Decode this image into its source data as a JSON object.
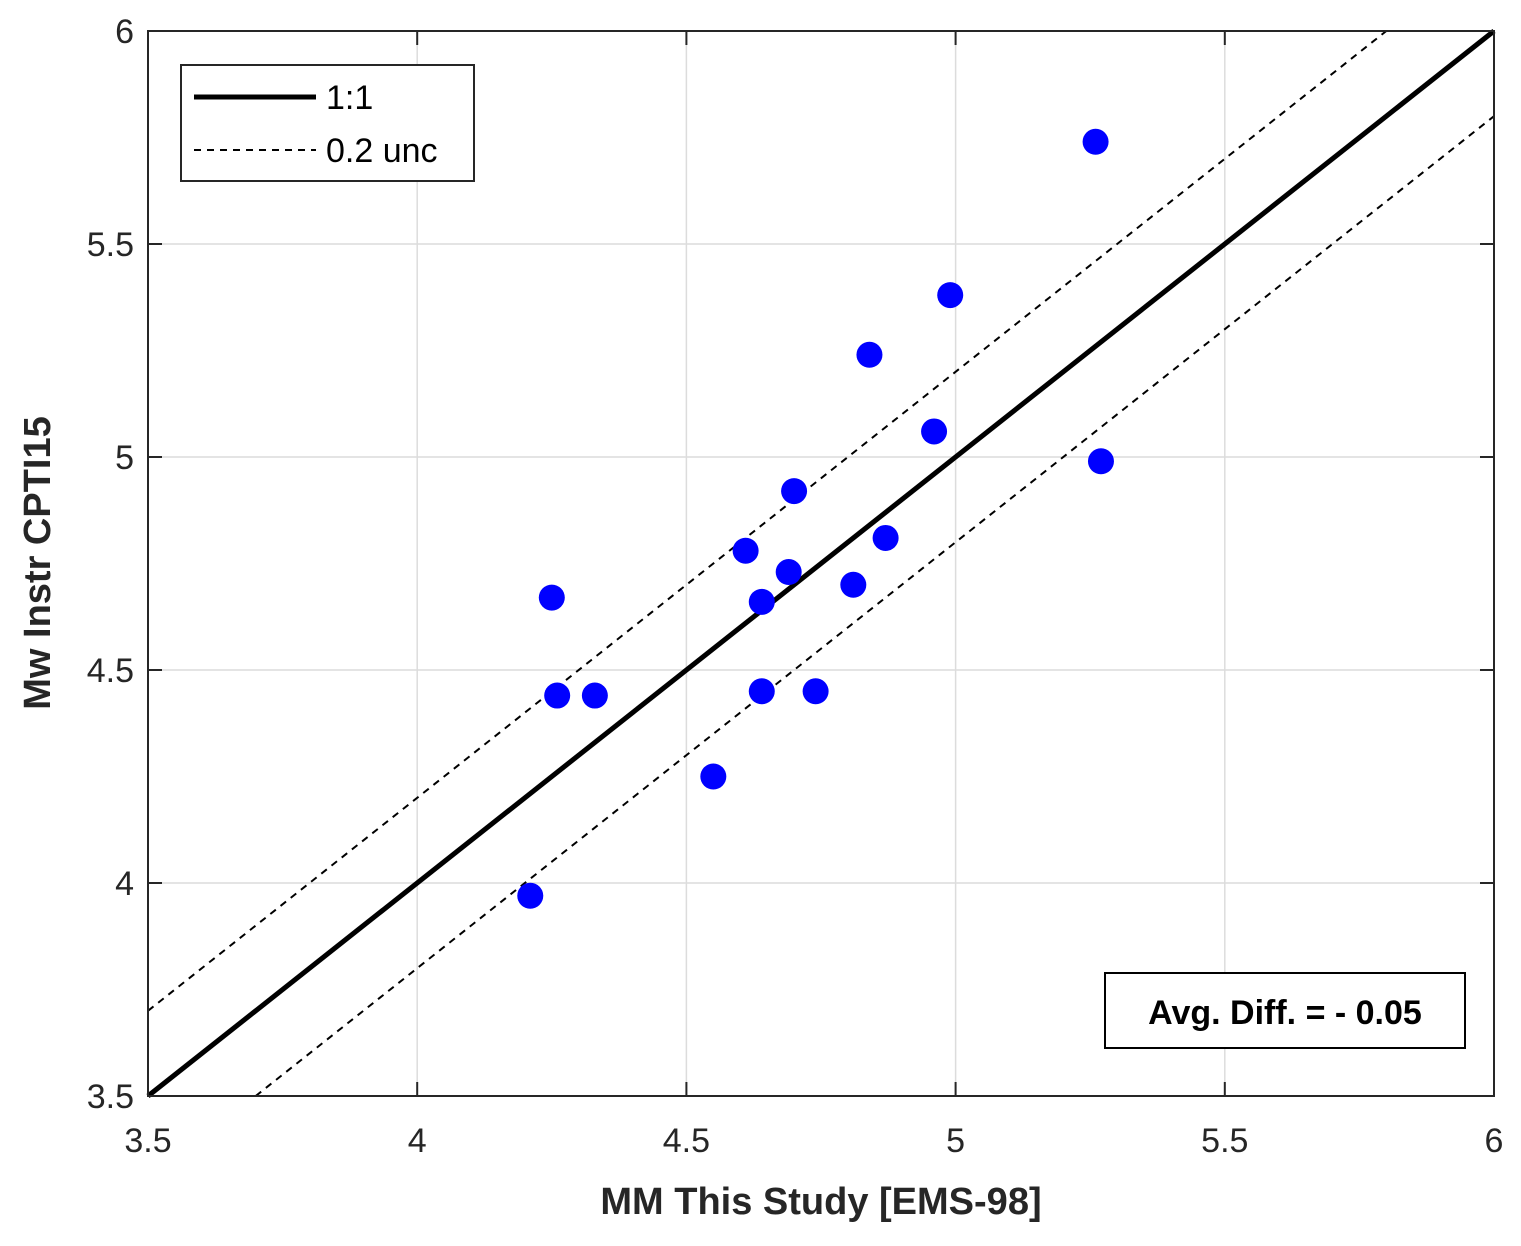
{
  "chart_data": {
    "type": "scatter",
    "xlabel": "MM This Study [EMS-98]",
    "ylabel": "Mw Instr CPTI15",
    "xlim": [
      3.5,
      6
    ],
    "ylim": [
      3.5,
      6
    ],
    "x_ticks": [
      3.5,
      4,
      4.5,
      5,
      5.5,
      6
    ],
    "y_ticks": [
      3.5,
      4,
      4.5,
      5,
      5.5,
      6
    ],
    "x_tick_labels": [
      "3.5",
      "4",
      "4.5",
      "5",
      "5.5",
      "6"
    ],
    "y_tick_labels": [
      "3.5",
      "4",
      "4.5",
      "5",
      "5.5",
      "6"
    ],
    "grid": true,
    "legend_position": "top-left",
    "series": [
      {
        "marker_color": "#0000ff",
        "points": [
          {
            "x": 4.21,
            "y": 3.97
          },
          {
            "x": 4.25,
            "y": 4.67
          },
          {
            "x": 4.26,
            "y": 4.44
          },
          {
            "x": 4.33,
            "y": 4.44
          },
          {
            "x": 4.55,
            "y": 4.25
          },
          {
            "x": 4.61,
            "y": 4.78
          },
          {
            "x": 4.64,
            "y": 4.66
          },
          {
            "x": 4.64,
            "y": 4.45
          },
          {
            "x": 4.69,
            "y": 4.73
          },
          {
            "x": 4.7,
            "y": 4.92
          },
          {
            "x": 4.74,
            "y": 4.45
          },
          {
            "x": 4.81,
            "y": 4.7
          },
          {
            "x": 4.84,
            "y": 5.24
          },
          {
            "x": 4.87,
            "y": 4.81
          },
          {
            "x": 4.96,
            "y": 5.06
          },
          {
            "x": 4.99,
            "y": 5.38
          },
          {
            "x": 5.26,
            "y": 5.74
          },
          {
            "x": 5.27,
            "y": 4.99
          }
        ]
      }
    ],
    "reference_lines": [
      {
        "name": "1:1",
        "style": "solid",
        "color": "#000000",
        "x": [
          3.5,
          6
        ],
        "y": [
          3.5,
          6
        ]
      },
      {
        "name": "0.2 unc",
        "style": "dashed",
        "color": "#000000",
        "x": [
          3.5,
          5.8
        ],
        "y": [
          3.7,
          6
        ]
      },
      {
        "name": "0.2 unc",
        "style": "dashed",
        "color": "#000000",
        "x": [
          3.7,
          6
        ],
        "y": [
          3.5,
          5.8
        ]
      }
    ],
    "legend": [
      {
        "label": "1:1",
        "style": "solid"
      },
      {
        "label": "0.2 unc",
        "style": "dashed"
      }
    ],
    "annotation": {
      "text": "Avg. Diff. = - 0.05",
      "position": "bottom-right"
    }
  }
}
